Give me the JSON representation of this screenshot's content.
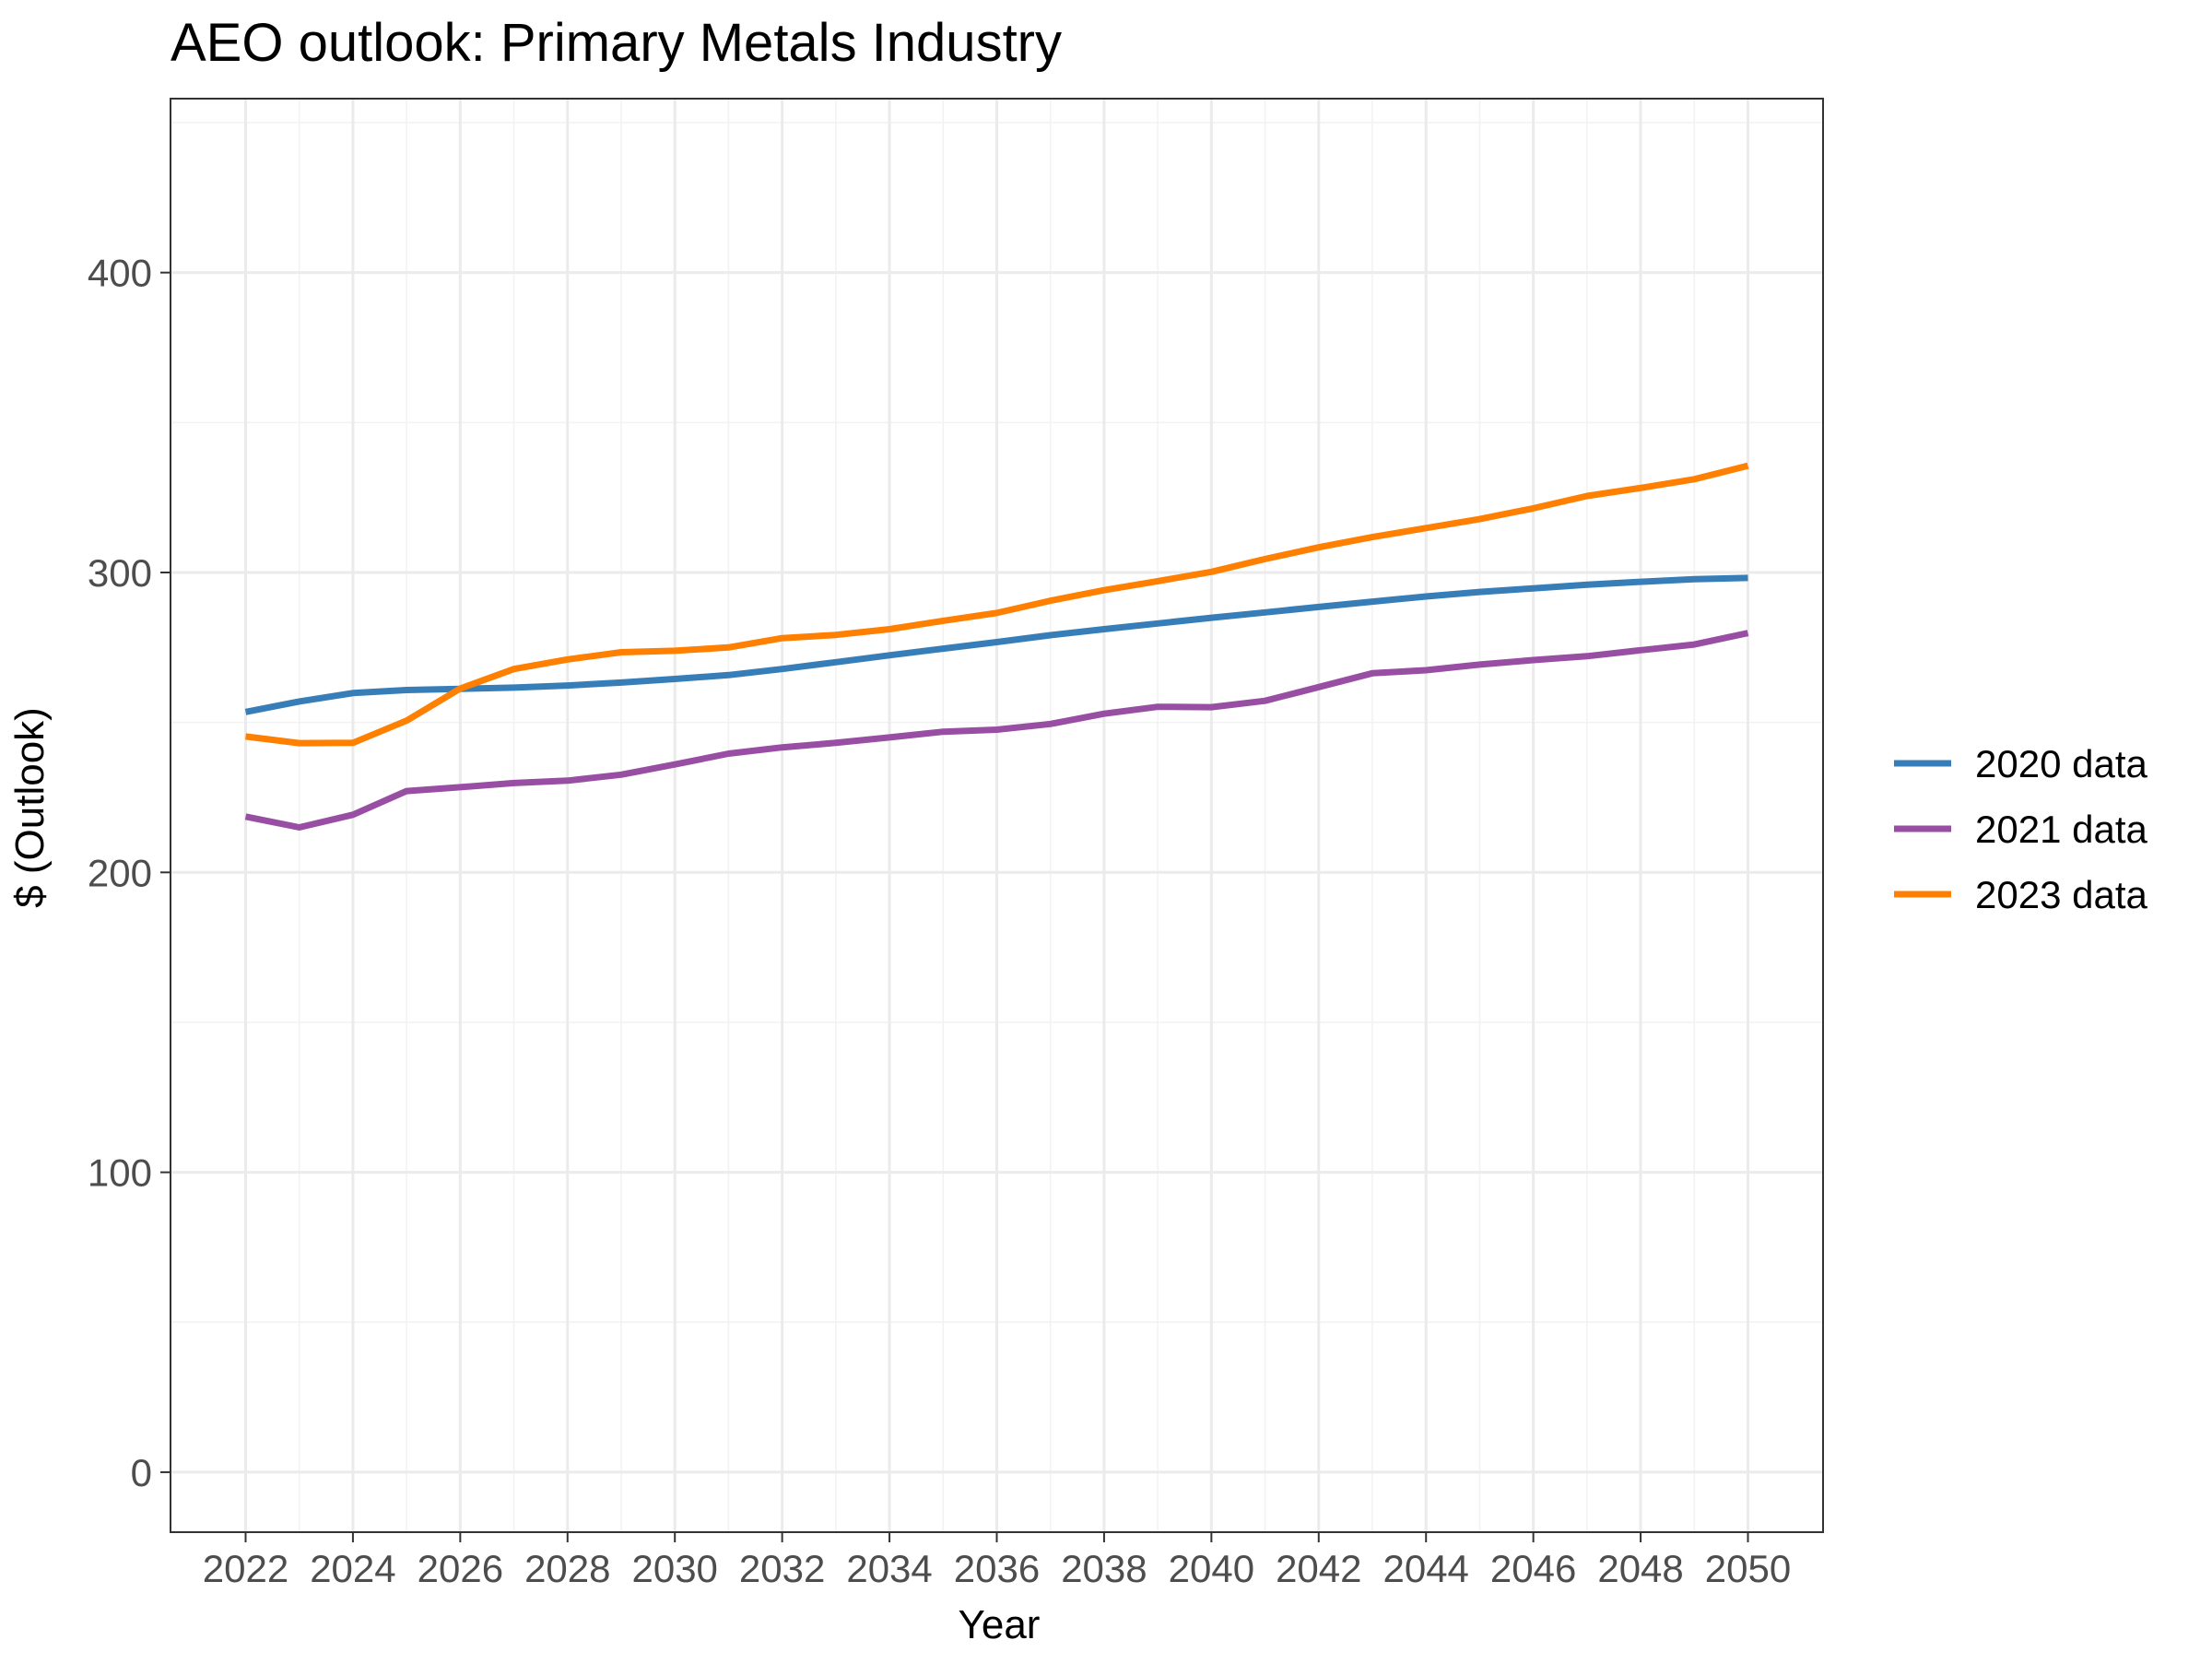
{
  "chart_data": {
    "type": "line",
    "title": "AEO outlook: Primary Metals Industry",
    "xlabel": "Year",
    "ylabel": "$ (Outlook)",
    "x": [
      2022,
      2023,
      2024,
      2025,
      2026,
      2027,
      2028,
      2029,
      2030,
      2031,
      2032,
      2033,
      2034,
      2035,
      2036,
      2037,
      2038,
      2039,
      2040,
      2041,
      2042,
      2043,
      2044,
      2045,
      2046,
      2047,
      2048,
      2049,
      2050
    ],
    "xticks": [
      "2022",
      "2024",
      "2026",
      "2028",
      "2030",
      "2032",
      "2034",
      "2036",
      "2038",
      "2040",
      "2042",
      "2044",
      "2046",
      "2048",
      "2050"
    ],
    "yticks": [
      "0",
      "100",
      "200",
      "300",
      "400"
    ],
    "xlim": [
      2020.6,
      2051.4
    ],
    "ylim": [
      -20,
      458
    ],
    "grid": true,
    "legend_position": "right",
    "series": [
      {
        "name": "2020 data",
        "color": "#377eb8",
        "values": [
          253.5,
          257,
          259.8,
          260.8,
          261.2,
          261.6,
          262.3,
          263.3,
          264.5,
          265.8,
          267.8,
          270.1,
          272.4,
          274.6,
          276.8,
          279.1,
          281.1,
          283,
          284.9,
          286.7,
          288.5,
          290.3,
          292,
          293.5,
          294.7,
          295.9,
          296.9,
          297.8,
          298.2
        ]
      },
      {
        "name": "2021 data",
        "color": "#984ea3",
        "values": [
          218.6,
          215,
          219.2,
          227.1,
          228.4,
          229.8,
          230.6,
          232.6,
          236,
          239.6,
          241.7,
          243.2,
          245,
          246.9,
          247.6,
          249.5,
          252.9,
          255.2,
          255.1,
          257.2,
          261.8,
          266.4,
          267.4,
          269.3,
          270.8,
          272.1,
          274.1,
          276,
          279.8
        ]
      },
      {
        "name": "2023 data",
        "color": "#ff7f00",
        "values": [
          245.3,
          243.1,
          243.2,
          250.6,
          261.3,
          267.8,
          271,
          273.4,
          273.9,
          275,
          278.1,
          279.2,
          281.1,
          283.9,
          286.5,
          290.6,
          294.1,
          297.1,
          300.2,
          304.5,
          308.4,
          311.8,
          314.8,
          317.8,
          321.4,
          325.5,
          328.2,
          331.1,
          335.6
        ]
      }
    ]
  }
}
